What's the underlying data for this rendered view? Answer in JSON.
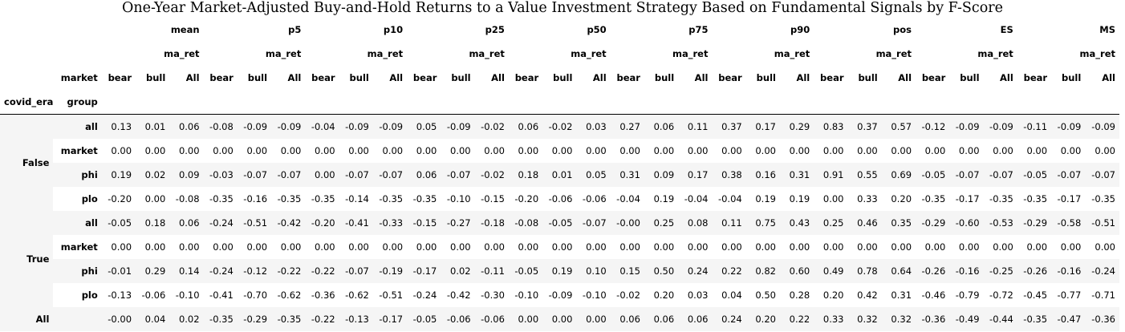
{
  "title": "One-Year Market-Adjusted Buy-and-Hold Returns to a Value Investment Strategy Based on Fundamental Signals by F-Score",
  "stats": [
    "mean",
    "p5",
    "p10",
    "p25",
    "p50",
    "p75",
    "p90",
    "pos",
    "ES",
    "MS"
  ],
  "value_label": "ma_ret",
  "column_level_name": "market",
  "markets": [
    "bear",
    "bull",
    "All"
  ],
  "index_names": [
    "covid_era",
    "group"
  ],
  "groups": [
    {
      "label": "False",
      "rows": [
        {
          "group": "all",
          "values": [
            "0.13",
            "0.01",
            "0.06",
            "-0.08",
            "-0.09",
            "-0.09",
            "-0.04",
            "-0.09",
            "-0.09",
            "0.05",
            "-0.09",
            "-0.02",
            "0.06",
            "-0.02",
            "0.03",
            "0.27",
            "0.06",
            "0.11",
            "0.37",
            "0.17",
            "0.29",
            "0.83",
            "0.37",
            "0.57",
            "-0.12",
            "-0.09",
            "-0.09",
            "-0.11",
            "-0.09",
            "-0.09"
          ]
        },
        {
          "group": "market",
          "values": [
            "0.00",
            "0.00",
            "0.00",
            "0.00",
            "0.00",
            "0.00",
            "0.00",
            "0.00",
            "0.00",
            "0.00",
            "0.00",
            "0.00",
            "0.00",
            "0.00",
            "0.00",
            "0.00",
            "0.00",
            "0.00",
            "0.00",
            "0.00",
            "0.00",
            "0.00",
            "0.00",
            "0.00",
            "0.00",
            "0.00",
            "0.00",
            "0.00",
            "0.00",
            "0.00"
          ]
        },
        {
          "group": "phi",
          "values": [
            "0.19",
            "0.02",
            "0.09",
            "-0.03",
            "-0.07",
            "-0.07",
            "0.00",
            "-0.07",
            "-0.07",
            "0.06",
            "-0.07",
            "-0.02",
            "0.18",
            "0.01",
            "0.05",
            "0.31",
            "0.09",
            "0.17",
            "0.38",
            "0.16",
            "0.31",
            "0.91",
            "0.55",
            "0.69",
            "-0.05",
            "-0.07",
            "-0.07",
            "-0.05",
            "-0.07",
            "-0.07"
          ]
        },
        {
          "group": "plo",
          "values": [
            "-0.20",
            "0.00",
            "-0.08",
            "-0.35",
            "-0.16",
            "-0.35",
            "-0.35",
            "-0.14",
            "-0.35",
            "-0.35",
            "-0.10",
            "-0.15",
            "-0.20",
            "-0.06",
            "-0.06",
            "-0.04",
            "0.19",
            "-0.04",
            "-0.04",
            "0.19",
            "0.19",
            "0.00",
            "0.33",
            "0.20",
            "-0.35",
            "-0.17",
            "-0.35",
            "-0.35",
            "-0.17",
            "-0.35"
          ]
        }
      ]
    },
    {
      "label": "True",
      "rows": [
        {
          "group": "all",
          "values": [
            "-0.05",
            "0.18",
            "0.06",
            "-0.24",
            "-0.51",
            "-0.42",
            "-0.20",
            "-0.41",
            "-0.33",
            "-0.15",
            "-0.27",
            "-0.18",
            "-0.08",
            "-0.05",
            "-0.07",
            "-0.00",
            "0.25",
            "0.08",
            "0.11",
            "0.75",
            "0.43",
            "0.25",
            "0.46",
            "0.35",
            "-0.29",
            "-0.60",
            "-0.53",
            "-0.29",
            "-0.58",
            "-0.51"
          ]
        },
        {
          "group": "market",
          "values": [
            "0.00",
            "0.00",
            "0.00",
            "0.00",
            "0.00",
            "0.00",
            "0.00",
            "0.00",
            "0.00",
            "0.00",
            "0.00",
            "0.00",
            "0.00",
            "0.00",
            "0.00",
            "0.00",
            "0.00",
            "0.00",
            "0.00",
            "0.00",
            "0.00",
            "0.00",
            "0.00",
            "0.00",
            "0.00",
            "0.00",
            "0.00",
            "0.00",
            "0.00",
            "0.00"
          ]
        },
        {
          "group": "phi",
          "values": [
            "-0.01",
            "0.29",
            "0.14",
            "-0.24",
            "-0.12",
            "-0.22",
            "-0.22",
            "-0.07",
            "-0.19",
            "-0.17",
            "0.02",
            "-0.11",
            "-0.05",
            "0.19",
            "0.10",
            "0.15",
            "0.50",
            "0.24",
            "0.22",
            "0.82",
            "0.60",
            "0.49",
            "0.78",
            "0.64",
            "-0.26",
            "-0.16",
            "-0.25",
            "-0.26",
            "-0.16",
            "-0.24"
          ]
        },
        {
          "group": "plo",
          "values": [
            "-0.13",
            "-0.06",
            "-0.10",
            "-0.41",
            "-0.70",
            "-0.62",
            "-0.36",
            "-0.62",
            "-0.51",
            "-0.24",
            "-0.42",
            "-0.30",
            "-0.10",
            "-0.09",
            "-0.10",
            "-0.02",
            "0.20",
            "0.03",
            "0.04",
            "0.50",
            "0.28",
            "0.20",
            "0.42",
            "0.31",
            "-0.46",
            "-0.79",
            "-0.72",
            "-0.45",
            "-0.77",
            "-0.71"
          ]
        }
      ]
    }
  ],
  "total_row": {
    "label": "All",
    "group": "",
    "values": [
      "-0.00",
      "0.04",
      "0.02",
      "-0.35",
      "-0.29",
      "-0.35",
      "-0.22",
      "-0.13",
      "-0.17",
      "-0.05",
      "-0.06",
      "-0.06",
      "0.00",
      "0.00",
      "0.00",
      "0.06",
      "0.06",
      "0.06",
      "0.24",
      "0.20",
      "0.22",
      "0.33",
      "0.32",
      "0.32",
      "-0.36",
      "-0.49",
      "-0.44",
      "-0.35",
      "-0.47",
      "-0.36"
    ]
  }
}
